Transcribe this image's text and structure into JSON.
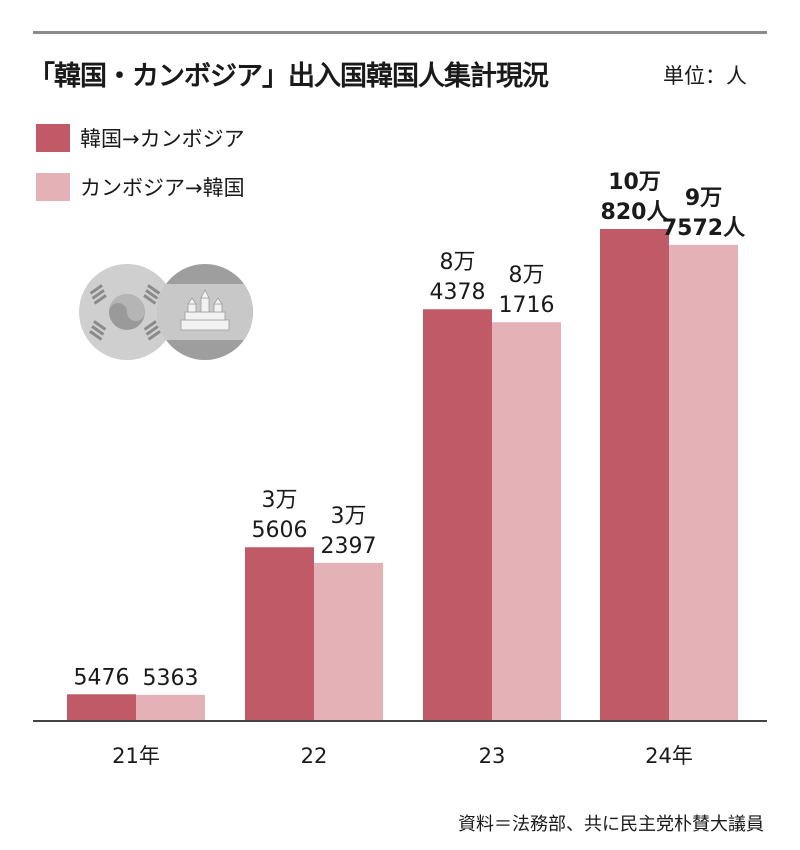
{
  "header": {
    "title": "「韓国・カンボジア」出入国韓国人集計現況",
    "unit": "単位：人"
  },
  "legend": [
    {
      "label": "韓国→カンボジア",
      "color": "#c05a67"
    },
    {
      "label": "カンボジア→韓国",
      "color": "#e4b1b6"
    }
  ],
  "source": "資料＝法務部、共に民主党朴賛大議員",
  "colors": {
    "axis": "#444444",
    "rule": "#8c8c8c",
    "flag": "#cfcfcf"
  },
  "flags": {
    "korea_icon": "korea-flag-icon",
    "cambodia_icon": "cambodia-flag-icon"
  },
  "chart_data": {
    "type": "bar",
    "title": "「韓国・カンボジア」出入国韓国人集計現況",
    "ylabel": "単位：人",
    "xlabel": "",
    "categories": [
      "21年",
      "22",
      "23",
      "24年"
    ],
    "series": [
      {
        "name": "韓国→カンボジア",
        "color": "#c05a67",
        "values": [
          5476,
          35606,
          84378,
          100820
        ],
        "labels": [
          [
            "5476"
          ],
          [
            "3万",
            "5606"
          ],
          [
            "8万",
            "4378"
          ],
          [
            "10万",
            "820人"
          ]
        ]
      },
      {
        "name": "カンボジア→韓国",
        "color": "#e4b1b6",
        "values": [
          5363,
          32397,
          81716,
          97572
        ],
        "labels": [
          [
            "5363"
          ],
          [
            "3万",
            "2397"
          ],
          [
            "8万",
            "1716"
          ],
          [
            "9万",
            "7572人"
          ]
        ]
      }
    ],
    "bold_labels_category": "24年",
    "ylim": [
      0,
      105000
    ],
    "grid": false,
    "legend_position": "top-left"
  }
}
